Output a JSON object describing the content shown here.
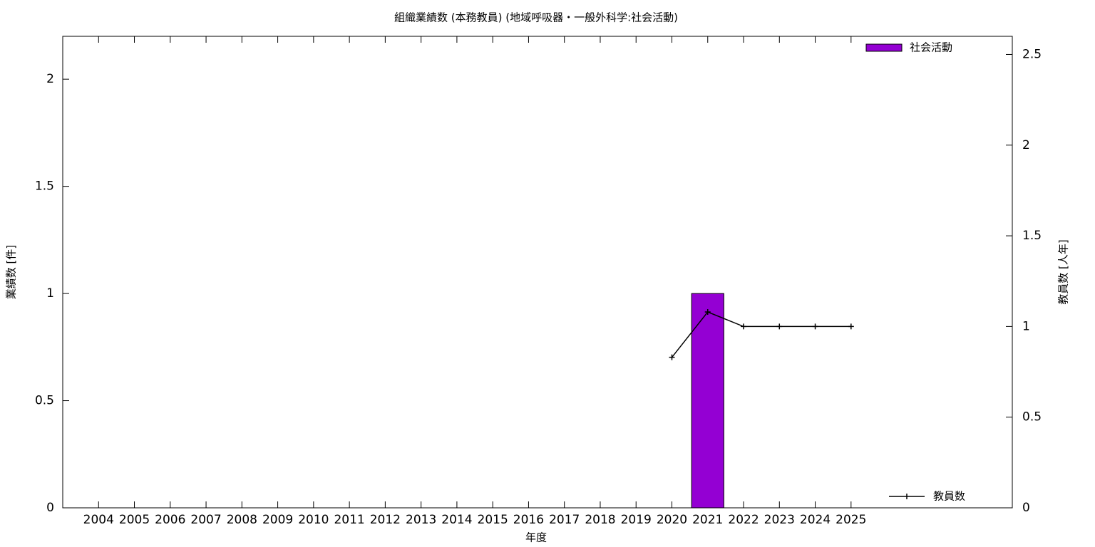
{
  "chart_data": {
    "type": "bar",
    "title": "組織業績数 (本務教員) (地域呼吸器・一般外科学:社会活動)",
    "x_label": "年度",
    "y_label": "業績数 [件]",
    "y2_label": "教員数 [人年]",
    "categories": [
      "2004",
      "2005",
      "2006",
      "2007",
      "2008",
      "2009",
      "2010",
      "2011",
      "2012",
      "2013",
      "2014",
      "2015",
      "2016",
      "2017",
      "2018",
      "2019",
      "2020",
      "2021",
      "2022",
      "2023",
      "2024",
      "2025"
    ],
    "series": [
      {
        "name": "社会活動",
        "type": "bar",
        "color": "#9400d3",
        "legend": "top-right",
        "values": [
          0,
          0,
          0,
          0,
          0,
          0,
          0,
          0,
          0,
          0,
          0,
          0,
          0,
          0,
          0,
          0,
          0,
          1,
          0,
          0,
          0,
          0
        ]
      },
      {
        "name": "教員数",
        "type": "line",
        "axis": "y2",
        "color": "#000000",
        "legend": "bottom-right",
        "values": [
          null,
          null,
          null,
          null,
          null,
          null,
          null,
          null,
          null,
          null,
          null,
          null,
          null,
          null,
          null,
          null,
          0.83,
          1.08,
          1,
          1,
          1,
          1
        ]
      }
    ],
    "ylim": [
      0,
      2.2
    ],
    "yticks": [
      0,
      0.5,
      1,
      1.5,
      2
    ],
    "y2lim": [
      0,
      2.6
    ],
    "y2ticks": [
      0,
      0.5,
      1,
      1.5,
      2,
      2.5
    ],
    "grid": false
  }
}
